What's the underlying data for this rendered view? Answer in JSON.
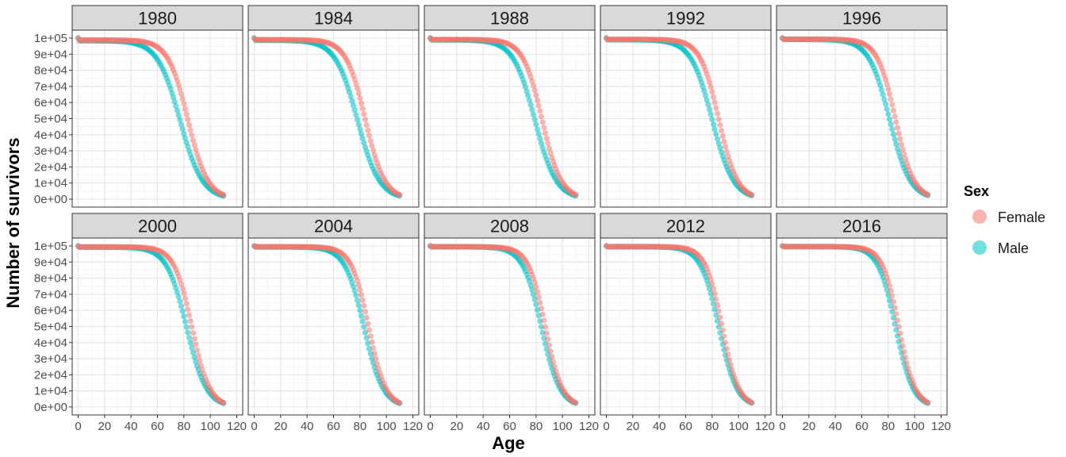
{
  "chart_data": {
    "type": "scatter",
    "facet_by": "year",
    "facets": [
      "1980",
      "1984",
      "1988",
      "1992",
      "1996",
      "2000",
      "2004",
      "2008",
      "2012",
      "2016"
    ],
    "xlabel": "Age",
    "ylabel": "Number of survivors",
    "xlim": [
      0,
      120
    ],
    "ylim": [
      0,
      100000
    ],
    "x_ticks": [
      0,
      20,
      40,
      60,
      80,
      100,
      120
    ],
    "x_tick_labels": [
      "0",
      "20",
      "40",
      "60",
      "80",
      "100",
      "120"
    ],
    "y_ticks": [
      0,
      10000,
      20000,
      30000,
      40000,
      50000,
      60000,
      70000,
      80000,
      90000,
      100000
    ],
    "y_tick_labels": [
      "0e+00",
      "1e+04",
      "2e+04",
      "3e+04",
      "4e+04",
      "5e+04",
      "6e+04",
      "7e+04",
      "8e+04",
      "9e+04",
      "1e+05"
    ],
    "grid": true,
    "x_age_range": [
      0,
      110
    ],
    "legend": {
      "title": "Sex",
      "placement": "right",
      "entries": [
        {
          "name": "Female",
          "color": "#F8766D"
        },
        {
          "name": "Male",
          "color": "#00BFC4"
        }
      ]
    },
    "series_model": "logistic survival curve per facet: survivors = 100000 * (1 - q0) / (1 + exp((age - median_age) / scale))",
    "series": [
      {
        "facet": "1980",
        "name": "Female",
        "median_age": 83,
        "scale": 7.5,
        "q0": 0.012
      },
      {
        "facet": "1980",
        "name": "Male",
        "median_age": 77,
        "scale": 8.5,
        "q0": 0.016
      },
      {
        "facet": "1984",
        "name": "Female",
        "median_age": 84,
        "scale": 7.3,
        "q0": 0.01
      },
      {
        "facet": "1984",
        "name": "Male",
        "median_age": 78,
        "scale": 8.3,
        "q0": 0.013
      },
      {
        "facet": "1988",
        "name": "Female",
        "median_age": 84.5,
        "scale": 7.2,
        "q0": 0.009
      },
      {
        "facet": "1988",
        "name": "Male",
        "median_age": 79,
        "scale": 8.1,
        "q0": 0.011
      },
      {
        "facet": "1992",
        "name": "Female",
        "median_age": 85,
        "scale": 7.0,
        "q0": 0.008
      },
      {
        "facet": "1992",
        "name": "Male",
        "median_age": 80,
        "scale": 8.0,
        "q0": 0.01
      },
      {
        "facet": "1996",
        "name": "Female",
        "median_age": 85.5,
        "scale": 6.9,
        "q0": 0.007
      },
      {
        "facet": "1996",
        "name": "Male",
        "median_age": 81,
        "scale": 7.8,
        "q0": 0.008
      },
      {
        "facet": "2000",
        "name": "Female",
        "median_age": 86,
        "scale": 6.7,
        "q0": 0.006
      },
      {
        "facet": "2000",
        "name": "Male",
        "median_age": 82,
        "scale": 7.5,
        "q0": 0.007
      },
      {
        "facet": "2004",
        "name": "Female",
        "median_age": 86.5,
        "scale": 6.5,
        "q0": 0.005
      },
      {
        "facet": "2004",
        "name": "Male",
        "median_age": 83,
        "scale": 7.2,
        "q0": 0.006
      },
      {
        "facet": "2008",
        "name": "Female",
        "median_age": 87,
        "scale": 6.4,
        "q0": 0.005
      },
      {
        "facet": "2008",
        "name": "Male",
        "median_age": 84,
        "scale": 7.0,
        "q0": 0.005
      },
      {
        "facet": "2012",
        "name": "Female",
        "median_age": 87.5,
        "scale": 6.3,
        "q0": 0.004
      },
      {
        "facet": "2012",
        "name": "Male",
        "median_age": 85,
        "scale": 6.8,
        "q0": 0.005
      },
      {
        "facet": "2016",
        "name": "Female",
        "median_age": 88,
        "scale": 6.2,
        "q0": 0.004
      },
      {
        "facet": "2016",
        "name": "Male",
        "median_age": 85.5,
        "scale": 6.6,
        "q0": 0.004
      }
    ]
  }
}
